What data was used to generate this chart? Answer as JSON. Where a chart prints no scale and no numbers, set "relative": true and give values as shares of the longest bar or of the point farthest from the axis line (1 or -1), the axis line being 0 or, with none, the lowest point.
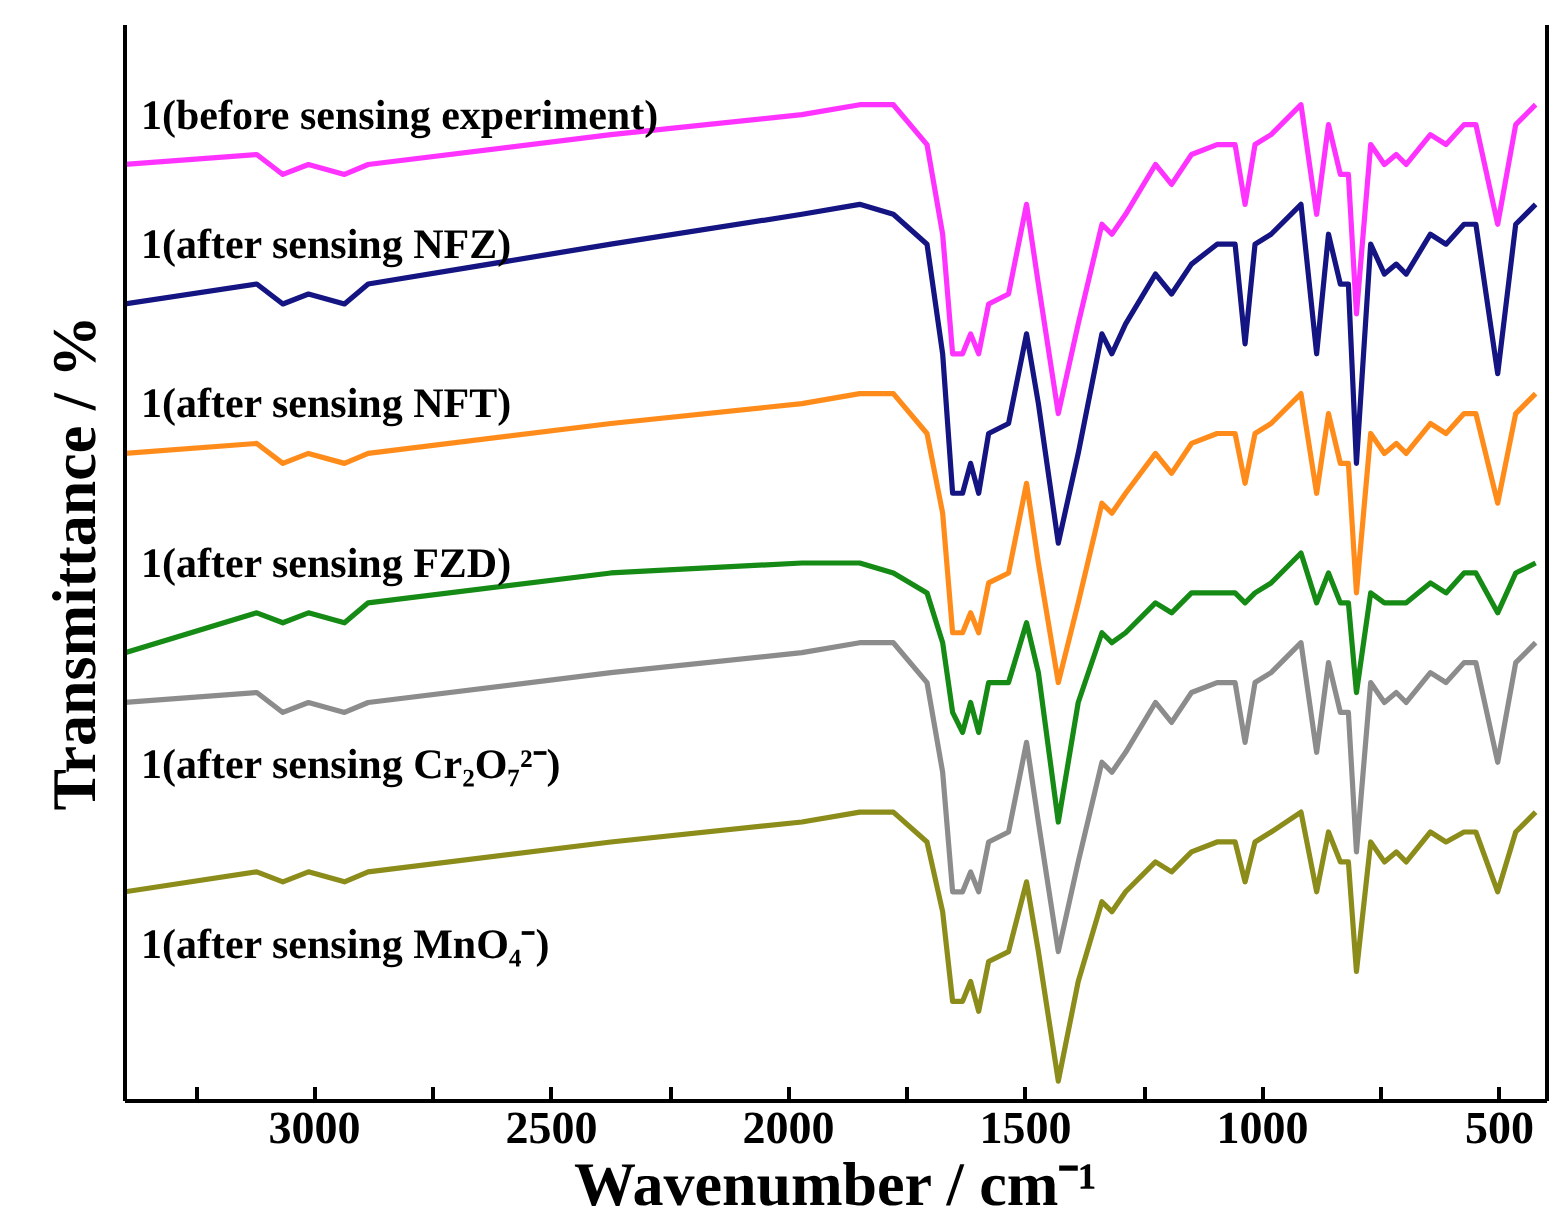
{
  "chart_data": {
    "type": "line",
    "relative": true,
    "xlabel": "Wavenumber / cm⁻¹",
    "ylabel": "Transmittance / %",
    "xlim": [
      3400,
      400
    ],
    "xticks": [
      {
        "value": 3250,
        "label": null
      },
      3000,
      {
        "value": 2750,
        "label": null
      },
      2500,
      {
        "value": 2250,
        "label": null
      },
      2000,
      {
        "value": 1750,
        "label": null
      },
      1500,
      {
        "value": 1250,
        "label": null
      },
      1000,
      {
        "value": 750,
        "label": null
      },
      500
    ],
    "tick_labels": "x",
    "grid": false,
    "marker": "none",
    "line_style": "solid",
    "x": [
      3400,
      3122,
      3067,
      3013,
      2937,
      2887,
      2375,
      1972,
      1850,
      1779,
      1708,
      1675,
      1654,
      1633,
      1616,
      1599,
      1578,
      1536,
      1498,
      1473,
      1431,
      1389,
      1339,
      1318,
      1289,
      1226,
      1192,
      1150,
      1096,
      1058,
      1037,
      1016,
      982,
      919,
      886,
      861,
      836,
      819,
      802,
      772,
      743,
      718,
      697,
      646,
      613,
      575,
      550,
      504,
      466,
      424
    ],
    "series": [
      {
        "name": "1(before sensing experiment)",
        "color": "#ff33ff",
        "values": [
          0.94,
          0.95,
          0.93,
          0.94,
          0.93,
          0.94,
          0.97,
          0.99,
          1.0,
          1.0,
          0.96,
          0.87,
          0.75,
          0.75,
          0.77,
          0.75,
          0.8,
          0.81,
          0.9,
          0.82,
          0.69,
          0.78,
          0.88,
          0.87,
          0.89,
          0.94,
          0.92,
          0.95,
          0.96,
          0.96,
          0.9,
          0.96,
          0.97,
          1.0,
          0.89,
          0.98,
          0.93,
          0.93,
          0.79,
          0.96,
          0.94,
          0.95,
          0.94,
          0.97,
          0.96,
          0.98,
          0.98,
          0.88,
          0.98,
          1.0
        ]
      },
      {
        "name": "1(after sensing NFZ)",
        "color": "#141482",
        "values": [
          0.8,
          0.82,
          0.8,
          0.81,
          0.8,
          0.82,
          0.86,
          0.89,
          0.9,
          0.89,
          0.86,
          0.75,
          0.61,
          0.61,
          0.64,
          0.61,
          0.67,
          0.68,
          0.77,
          0.7,
          0.56,
          0.65,
          0.77,
          0.75,
          0.78,
          0.83,
          0.81,
          0.84,
          0.86,
          0.86,
          0.76,
          0.86,
          0.87,
          0.9,
          0.75,
          0.87,
          0.82,
          0.82,
          0.64,
          0.86,
          0.83,
          0.84,
          0.83,
          0.87,
          0.86,
          0.88,
          0.88,
          0.73,
          0.88,
          0.9
        ]
      },
      {
        "name": "1(after sensing NFT)",
        "color": "#ff8c1a",
        "values": [
          0.65,
          0.66,
          0.64,
          0.65,
          0.64,
          0.65,
          0.68,
          0.7,
          0.71,
          0.71,
          0.67,
          0.59,
          0.47,
          0.47,
          0.49,
          0.47,
          0.52,
          0.53,
          0.62,
          0.54,
          0.42,
          0.5,
          0.6,
          0.59,
          0.61,
          0.65,
          0.63,
          0.66,
          0.67,
          0.67,
          0.62,
          0.67,
          0.68,
          0.71,
          0.61,
          0.69,
          0.64,
          0.64,
          0.51,
          0.67,
          0.65,
          0.66,
          0.65,
          0.68,
          0.67,
          0.69,
          0.69,
          0.6,
          0.69,
          0.71
        ]
      },
      {
        "name": "1(after sensing FZD)",
        "color": "#158a15",
        "values": [
          0.45,
          0.49,
          0.48,
          0.49,
          0.48,
          0.5,
          0.53,
          0.54,
          0.54,
          0.53,
          0.51,
          0.46,
          0.39,
          0.37,
          0.4,
          0.37,
          0.42,
          0.42,
          0.48,
          0.43,
          0.28,
          0.4,
          0.47,
          0.46,
          0.47,
          0.5,
          0.49,
          0.51,
          0.51,
          0.51,
          0.5,
          0.51,
          0.52,
          0.55,
          0.5,
          0.53,
          0.5,
          0.5,
          0.41,
          0.51,
          0.5,
          0.5,
          0.5,
          0.52,
          0.51,
          0.53,
          0.53,
          0.49,
          0.53,
          0.54
        ]
      },
      {
        "name": "1(after sensing Cr₂O₇²⁻)",
        "color": "#8c8c8c",
        "values": [
          0.4,
          0.41,
          0.39,
          0.4,
          0.39,
          0.4,
          0.43,
          0.45,
          0.46,
          0.46,
          0.42,
          0.33,
          0.21,
          0.21,
          0.23,
          0.21,
          0.26,
          0.27,
          0.36,
          0.28,
          0.15,
          0.24,
          0.34,
          0.33,
          0.35,
          0.4,
          0.38,
          0.41,
          0.42,
          0.42,
          0.36,
          0.42,
          0.43,
          0.46,
          0.35,
          0.44,
          0.39,
          0.39,
          0.25,
          0.42,
          0.4,
          0.41,
          0.4,
          0.43,
          0.42,
          0.44,
          0.44,
          0.34,
          0.44,
          0.46
        ]
      },
      {
        "name": "1(after sensing MnO₄⁻)",
        "color": "#8c8c1a",
        "values": [
          0.21,
          0.23,
          0.22,
          0.23,
          0.22,
          0.23,
          0.26,
          0.28,
          0.29,
          0.29,
          0.26,
          0.19,
          0.1,
          0.1,
          0.12,
          0.09,
          0.14,
          0.15,
          0.22,
          0.15,
          0.02,
          0.12,
          0.2,
          0.19,
          0.21,
          0.24,
          0.23,
          0.25,
          0.26,
          0.26,
          0.22,
          0.26,
          0.27,
          0.29,
          0.21,
          0.27,
          0.24,
          0.24,
          0.13,
          0.26,
          0.24,
          0.25,
          0.24,
          0.27,
          0.26,
          0.27,
          0.27,
          0.21,
          0.27,
          0.29
        ]
      }
    ]
  }
}
